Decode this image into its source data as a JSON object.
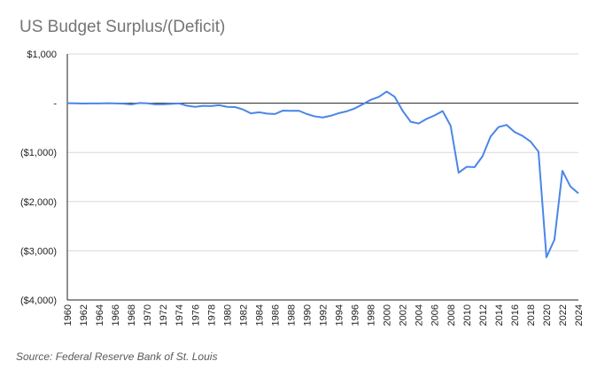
{
  "title": "US Budget Surplus/(Deficit)",
  "source": "Source: Federal Reserve Bank of St. Louis",
  "colors": {
    "line": "#4a86e8",
    "grid": "#d9d9d9",
    "axis": "#222222"
  },
  "chart_data": {
    "type": "line",
    "title": "US Budget Surplus/(Deficit)",
    "xlabel": "",
    "ylabel": "",
    "ylim": [
      -4000,
      1000
    ],
    "yticks": [
      {
        "value": 1000,
        "label": "$1,000"
      },
      {
        "value": 0,
        "label": "-"
      },
      {
        "value": -1000,
        "label": "($1,000)"
      },
      {
        "value": -2000,
        "label": "($2,000)"
      },
      {
        "value": -3000,
        "label": "($3,000)"
      },
      {
        "value": -4000,
        "label": "($4,000)"
      }
    ],
    "xtick_labels": [
      "1960",
      "1962",
      "1964",
      "1966",
      "1968",
      "1970",
      "1972",
      "1974",
      "1976",
      "1978",
      "1980",
      "1982",
      "1984",
      "1986",
      "1988",
      "1990",
      "1992",
      "1994",
      "1996",
      "1998",
      "2000",
      "2002",
      "2004",
      "2006",
      "2008",
      "2010",
      "2012",
      "2014",
      "2016",
      "2018",
      "2020",
      "2022",
      "2024"
    ],
    "grid": true,
    "series": [
      {
        "x": [
          1960,
          1961,
          1962,
          1963,
          1964,
          1965,
          1966,
          1967,
          1968,
          1969,
          1970,
          1971,
          1972,
          1973,
          1974,
          1975,
          1976,
          1977,
          1978,
          1979,
          1980,
          1981,
          1982,
          1983,
          1984,
          1985,
          1986,
          1987,
          1988,
          1989,
          1990,
          1991,
          1992,
          1993,
          1994,
          1995,
          1996,
          1997,
          1998,
          1999,
          2000,
          2001,
          2002,
          2003,
          2004,
          2005,
          2006,
          2007,
          2008,
          2009,
          2010,
          2011,
          2012,
          2013,
          2014,
          2015,
          2016,
          2017,
          2018,
          2019,
          2020,
          2021,
          2022,
          2023,
          2024
        ],
        "values": [
          0,
          -3,
          -7,
          -5,
          -6,
          -1,
          -4,
          -9,
          -25,
          3,
          -3,
          -23,
          -23,
          -15,
          -6,
          -53,
          -74,
          -54,
          -59,
          -41,
          -74,
          -79,
          -128,
          -208,
          -185,
          -212,
          -221,
          -150,
          -155,
          -153,
          -221,
          -269,
          -290,
          -255,
          -203,
          -164,
          -107,
          -22,
          69,
          126,
          236,
          128,
          -158,
          -378,
          -413,
          -318,
          -248,
          -161,
          -459,
          -1413,
          -1294,
          -1300,
          -1077,
          -680,
          -485,
          -442,
          -585,
          -665,
          -779,
          -984,
          -3132,
          -2775,
          -1376,
          -1694,
          -1833
        ]
      }
    ]
  }
}
